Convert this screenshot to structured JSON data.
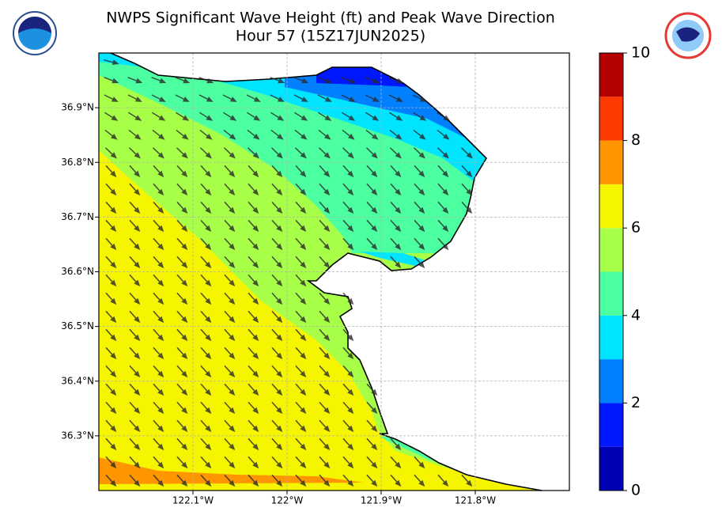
{
  "header": {
    "title": "NWPS Significant Wave Height (ft) and Peak Wave Direction",
    "subtitle": "Hour 57 (15Z17JUN2025)"
  },
  "map": {
    "xlim": [
      -122.2,
      -121.7
    ],
    "ylim": [
      36.2,
      37.0
    ],
    "xticks": [
      {
        "value": -122.1,
        "label": "122.1°W"
      },
      {
        "value": -122.0,
        "label": "122°W"
      },
      {
        "value": -121.9,
        "label": "121.9°W"
      },
      {
        "value": -121.8,
        "label": "121.8°W"
      }
    ],
    "yticks": [
      {
        "value": 36.3,
        "label": "36.3°N"
      },
      {
        "value": 36.4,
        "label": "36.4°N"
      },
      {
        "value": 36.5,
        "label": "36.5°N"
      },
      {
        "value": 36.6,
        "label": "36.6°N"
      },
      {
        "value": 36.7,
        "label": "36.7°N"
      },
      {
        "value": 36.8,
        "label": "36.8°N"
      },
      {
        "value": 36.9,
        "label": "36.9°N"
      }
    ],
    "grid": true
  },
  "colorbar": {
    "lim": [
      0,
      10
    ],
    "ticks": [
      0,
      2,
      4,
      6,
      8,
      10
    ],
    "colors": [
      "#0000b4",
      "#0018ff",
      "#0080ff",
      "#00e4ff",
      "#4cffa0",
      "#a8ff48",
      "#f5f500",
      "#ff9600",
      "#ff3a00",
      "#b40000"
    ]
  }
}
